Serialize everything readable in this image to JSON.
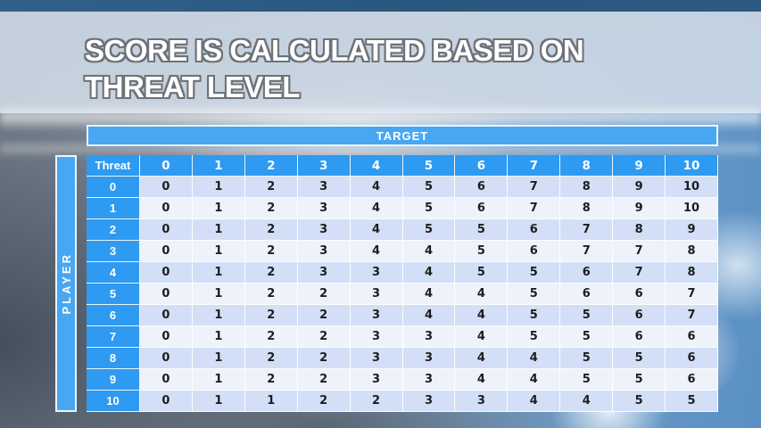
{
  "slide": {
    "title_line1": "SCORE IS CALCULATED BASED ON",
    "title_line2": "THREAT LEVEL"
  },
  "table": {
    "target_label": "TARGET",
    "player_label": "PLAYER",
    "corner_label": "Threat",
    "column_headers": [
      "0",
      "1",
      "2",
      "3",
      "4",
      "5",
      "6",
      "7",
      "8",
      "9",
      "10"
    ],
    "rows": [
      {
        "header": "0",
        "values": [
          "0",
          "1",
          "2",
          "3",
          "4",
          "5",
          "6",
          "7",
          "8",
          "9",
          "10"
        ]
      },
      {
        "header": "1",
        "values": [
          "0",
          "1",
          "2",
          "3",
          "4",
          "5",
          "6",
          "7",
          "8",
          "9",
          "10"
        ]
      },
      {
        "header": "2",
        "values": [
          "0",
          "1",
          "2",
          "3",
          "4",
          "5",
          "5",
          "6",
          "7",
          "8",
          "9"
        ]
      },
      {
        "header": "3",
        "values": [
          "0",
          "1",
          "2",
          "3",
          "4",
          "4",
          "5",
          "6",
          "7",
          "7",
          "8"
        ]
      },
      {
        "header": "4",
        "values": [
          "0",
          "1",
          "2",
          "3",
          "3",
          "4",
          "5",
          "5",
          "6",
          "7",
          "8"
        ]
      },
      {
        "header": "5",
        "values": [
          "0",
          "1",
          "2",
          "2",
          "3",
          "4",
          "4",
          "5",
          "6",
          "6",
          "7"
        ]
      },
      {
        "header": "6",
        "values": [
          "0",
          "1",
          "2",
          "2",
          "3",
          "4",
          "4",
          "5",
          "5",
          "6",
          "7"
        ]
      },
      {
        "header": "7",
        "values": [
          "0",
          "1",
          "2",
          "2",
          "3",
          "3",
          "4",
          "5",
          "5",
          "6",
          "6"
        ]
      },
      {
        "header": "8",
        "values": [
          "0",
          "1",
          "2",
          "2",
          "3",
          "3",
          "4",
          "4",
          "5",
          "5",
          "6"
        ]
      },
      {
        "header": "9",
        "values": [
          "0",
          "1",
          "2",
          "2",
          "3",
          "3",
          "4",
          "4",
          "5",
          "5",
          "6"
        ]
      },
      {
        "header": "10",
        "values": [
          "0",
          "1",
          "1",
          "2",
          "2",
          "3",
          "3",
          "4",
          "4",
          "5",
          "5"
        ]
      }
    ]
  },
  "colors": {
    "header_blue": "#2e9af1",
    "bar_blue": "#47a7f2",
    "row_light": "#d3dff6",
    "row_lighter": "#eef2fb",
    "title_band": "#ccd8e6",
    "sky_top": "#2e5a82"
  }
}
